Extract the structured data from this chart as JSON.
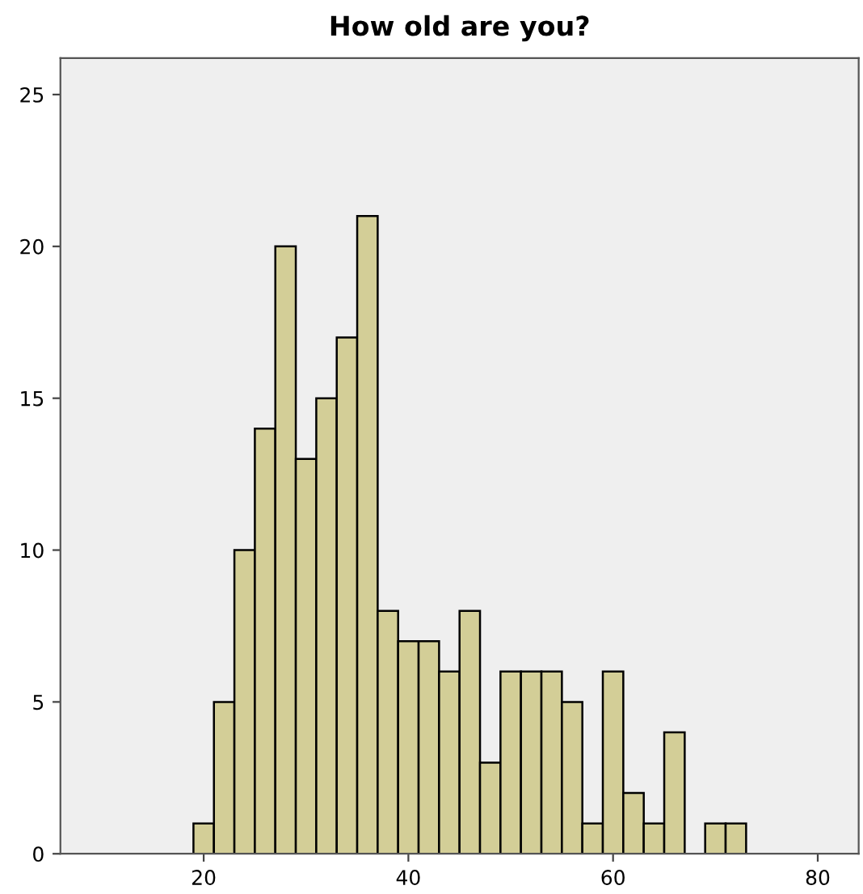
{
  "chart_data": {
    "type": "histogram",
    "title": "How old are you?",
    "bins": [
      19,
      21,
      23,
      25,
      27,
      29,
      31,
      33,
      35,
      37,
      39,
      41,
      43,
      45,
      47,
      49,
      51,
      53,
      55,
      57,
      59,
      61,
      63,
      65,
      67,
      69,
      71,
      73
    ],
    "values": [
      1,
      5,
      10,
      14,
      20,
      13,
      15,
      17,
      21,
      8,
      7,
      7,
      6,
      8,
      3,
      6,
      6,
      6,
      5,
      1,
      6,
      2,
      1,
      4,
      0,
      1,
      1
    ],
    "color": "#d3ce97",
    "xlim": [
      6,
      84
    ],
    "xticks": [
      20,
      40,
      60,
      80
    ],
    "ylim": [
      0,
      26.2
    ],
    "yticks": [
      0,
      5,
      10,
      15,
      20,
      25
    ],
    "grid": false
  }
}
